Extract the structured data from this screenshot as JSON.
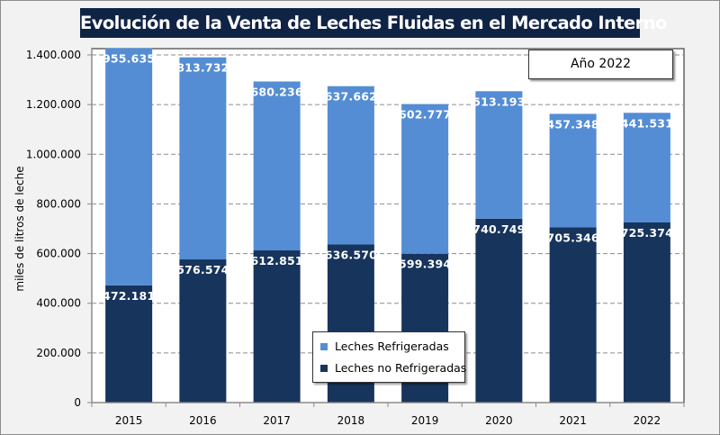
{
  "chart_data": {
    "type": "bar",
    "stacked": true,
    "title": "Evolución de la Venta de Leches Fluidas en el Mercado Interno",
    "annotation": "Año 2022",
    "xlabel": "",
    "ylabel": "miles de litros de leche",
    "ylim": [
      0,
      1400000
    ],
    "yticks": [
      0,
      200000,
      400000,
      600000,
      800000,
      1000000,
      1200000,
      1400000
    ],
    "ytick_labels": [
      "0",
      "200.000",
      "400.000",
      "600.000",
      "800.000",
      "1.000.000",
      "1.200.000",
      "1.400.000"
    ],
    "grid": true,
    "legend_position": "bottom-center",
    "categories": [
      "2015",
      "2016",
      "2017",
      "2018",
      "2019",
      "2020",
      "2021",
      "2022"
    ],
    "series": [
      {
        "name": "Leches no Refrigeradas",
        "color": "#17345d",
        "values": [
          472181,
          576574,
          612851,
          636570,
          599394,
          740749,
          705346,
          725374
        ],
        "labels": [
          "472.181",
          "576.574",
          "612.851",
          "636.570",
          "599.394",
          "740.749",
          "705.346",
          "725.374"
        ]
      },
      {
        "name": "Leches Refrigeradas",
        "color": "#548dd4",
        "values": [
          955635,
          813732,
          680236,
          637662,
          602777,
          513193,
          457348,
          441531
        ],
        "labels": [
          "955.635",
          "813.732",
          "680.236",
          "637.662",
          "602.777",
          "513.193",
          "457.348",
          "441.531"
        ]
      }
    ]
  },
  "legend": {
    "items": [
      {
        "label": "Leches Refrigeradas",
        "color": "#548dd4"
      },
      {
        "label": "Leches no Refrigeradas",
        "color": "#17345d"
      }
    ]
  }
}
